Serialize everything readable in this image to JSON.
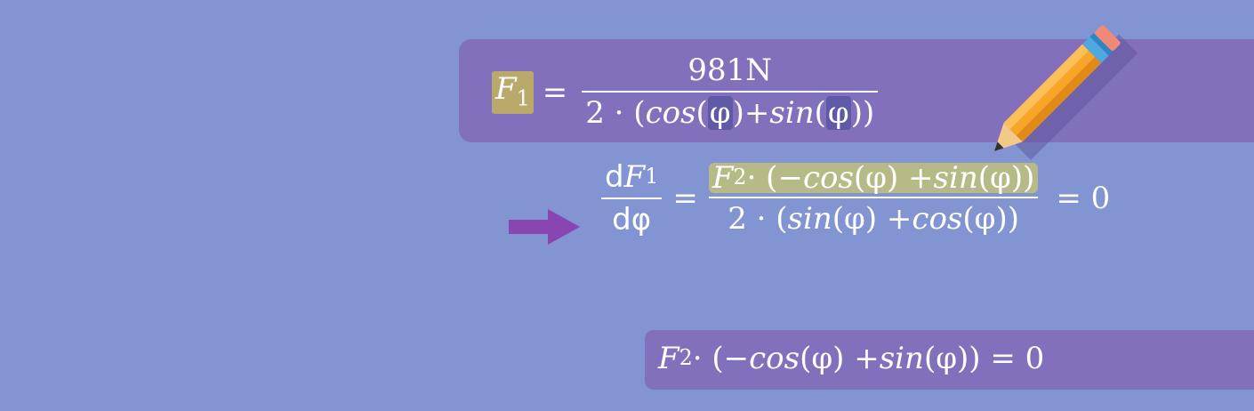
{
  "equation1": {
    "lhs_symbol": "F",
    "lhs_sub": "1",
    "equals": "=",
    "numerator": "981N",
    "den_prefix": "2 · (",
    "den_cos": "cos",
    "den_open1": "(",
    "den_phi1": "φ",
    "den_close1": ")",
    "den_plus": " + ",
    "den_sin": "sin",
    "den_open2": "(",
    "den_phi2": "φ",
    "den_close2": "))"
  },
  "equation2": {
    "d_num": "d",
    "f_symbol": "F",
    "f_sub": "1",
    "d_den": "dφ",
    "equals": "=",
    "num_f": "F",
    "num_sub": "2",
    "num_rest_a": " · (− ",
    "num_cos": "cos",
    "num_rest_b": "(φ) + ",
    "num_sin": "sin",
    "num_rest_c": "(φ))",
    "den_a": "2 · (",
    "den_sin": "sin",
    "den_b": "(φ) + ",
    "den_cos": "cos",
    "den_c": "(φ))",
    "equals2": "= 0"
  },
  "equation3": {
    "f_symbol": "F",
    "f_sub": "2",
    "rest_a": " · (− ",
    "cos": "cos",
    "rest_b": "(φ) + ",
    "sin": "sin",
    "rest_c": "(φ)) = 0"
  },
  "colors": {
    "background": "#8294d2",
    "band": "#8270bd",
    "highlight_f1": "#b9a96a",
    "highlight_phi": "#5f5aa8",
    "highlight_numerator": "#b7ba87",
    "arrow": "#8a46b0"
  },
  "icons": {
    "arrow": "right-arrow-icon",
    "pencil": "pencil-icon"
  }
}
